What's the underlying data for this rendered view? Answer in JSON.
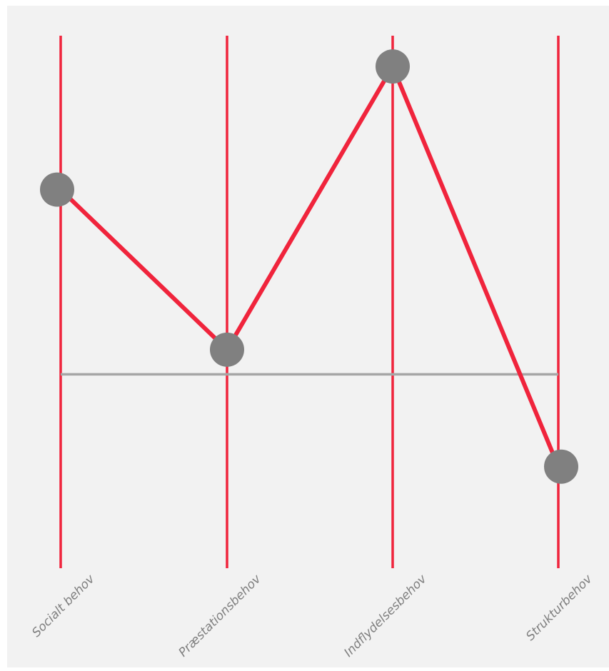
{
  "chart_data": {
    "type": "line",
    "categories": [
      "Socialt behov",
      "Præstationsbehov",
      "Indflydelsesbehov",
      "Strukturbehov"
    ],
    "values": [
      0.6,
      0.08,
      1.0,
      -0.3
    ],
    "ylim": [
      -0.63,
      1.1
    ],
    "reference_line": 0,
    "grid": false,
    "legend": "none",
    "colors": {
      "background": "#f2f2f2",
      "axis_line": "#f0243c",
      "series_line": "#f0243c",
      "marker": "#808080",
      "reference_line": "#a6a6a6",
      "label": "#7f7f7f"
    }
  }
}
